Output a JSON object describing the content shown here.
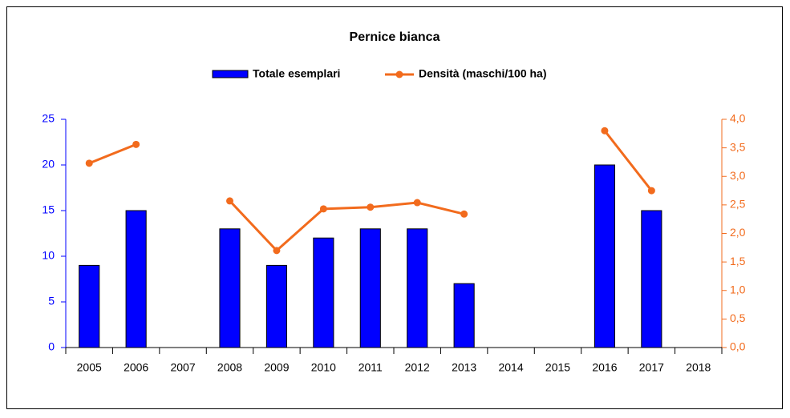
{
  "chart_data": {
    "type": "bar-line",
    "title": "Pernice bianca",
    "categories": [
      "2005",
      "2006",
      "2007",
      "2008",
      "2009",
      "2010",
      "2011",
      "2012",
      "2013",
      "2014",
      "2015",
      "2016",
      "2017",
      "2018"
    ],
    "series": [
      {
        "name": "Totale esemplari",
        "type": "bar",
        "color": "#0000ff",
        "axis": "y",
        "values": [
          9,
          15,
          null,
          13,
          9,
          12,
          13,
          13,
          7,
          null,
          null,
          20,
          15,
          null
        ]
      },
      {
        "name": "Densità (maschi/100 ha)",
        "type": "line",
        "color": "#f26b1d",
        "axis": "y2",
        "values": [
          3.23,
          3.56,
          null,
          2.57,
          1.7,
          2.43,
          2.46,
          2.54,
          2.34,
          null,
          null,
          3.8,
          2.75,
          null
        ]
      }
    ],
    "ylim": [
      0,
      25
    ],
    "yticks": [
      0,
      5,
      10,
      15,
      20,
      25
    ],
    "y2lim": [
      0,
      4
    ],
    "y2ticks": [
      {
        "value": 0,
        "label": "0,0"
      },
      {
        "value": 0.5,
        "label": "0,5"
      },
      {
        "value": 1,
        "label": "1,0"
      },
      {
        "value": 1.5,
        "label": "1,5"
      },
      {
        "value": 2,
        "label": "2,0"
      },
      {
        "value": 2.5,
        "label": "2,5"
      },
      {
        "value": 3,
        "label": "3,0"
      },
      {
        "value": 3.5,
        "label": "3,5"
      },
      {
        "value": 4,
        "label": "4,0"
      }
    ],
    "legend": "top",
    "grid": false
  }
}
